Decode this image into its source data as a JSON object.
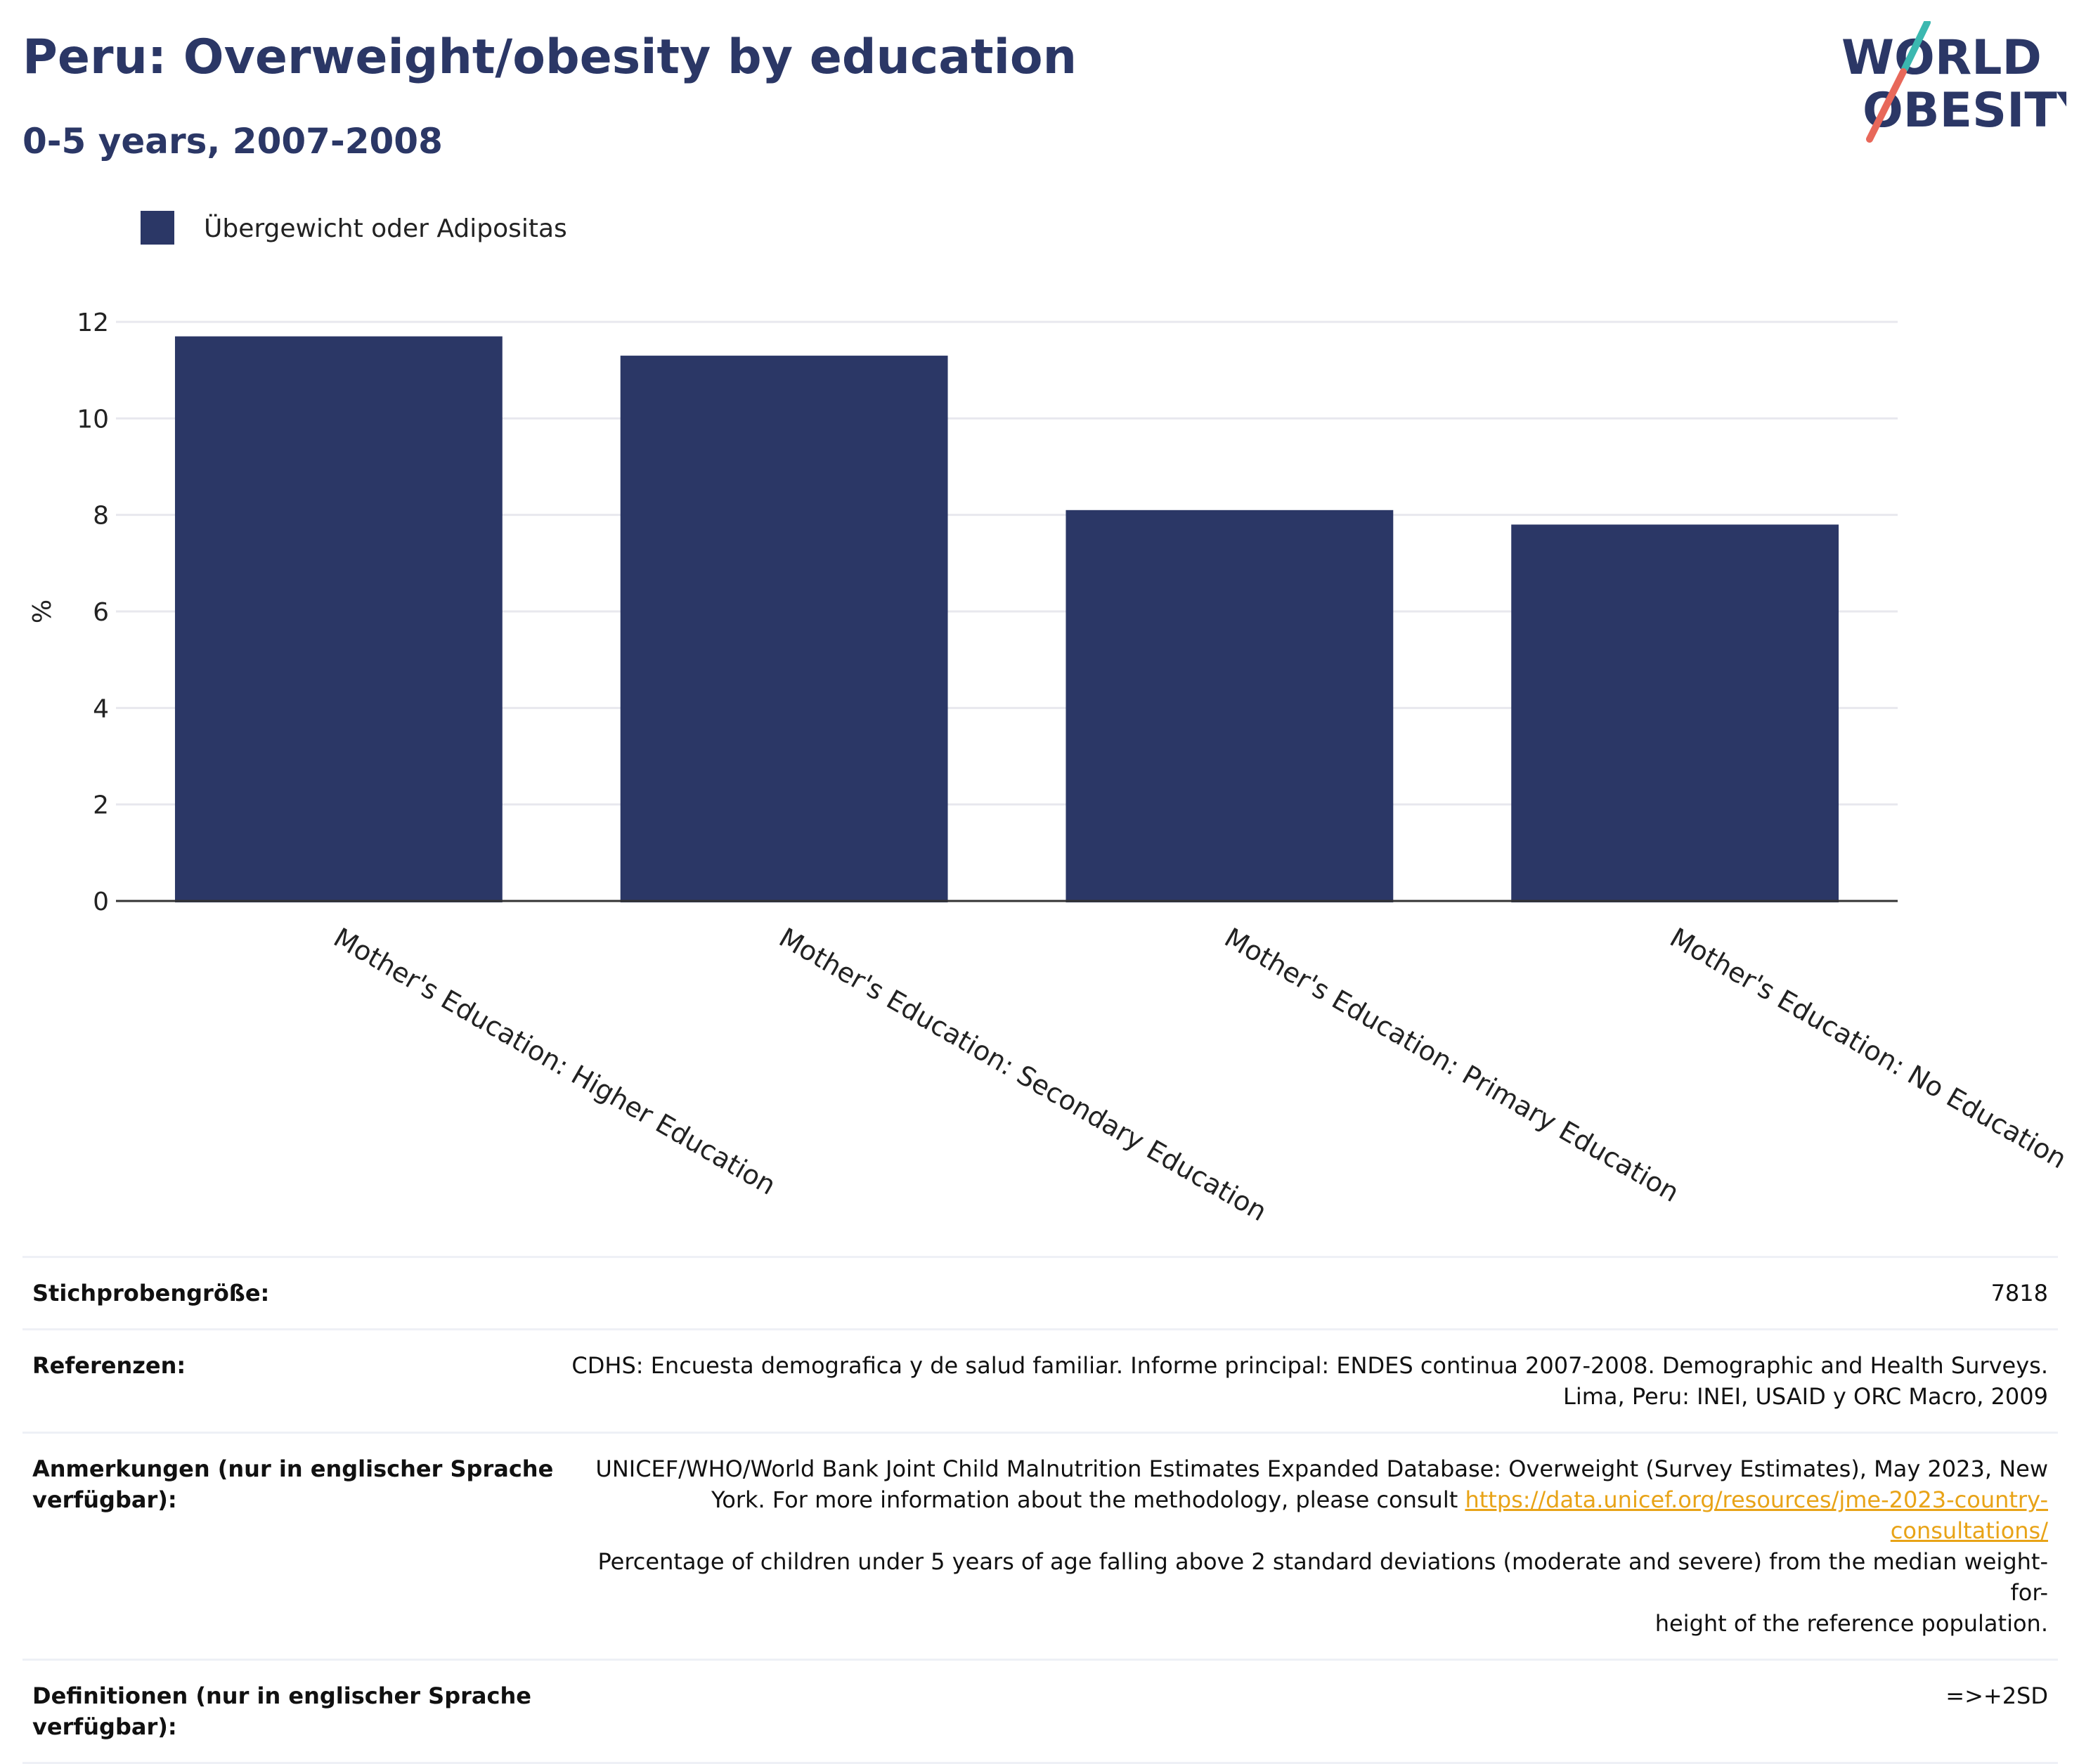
{
  "header": {
    "title": "Peru: Overweight/obesity by education",
    "subtitle": "0-5 years, 2007-2008"
  },
  "logo": {
    "line1": "WORLD",
    "line2": "OBESITY",
    "colors": {
      "text": "#2b3766",
      "slash_teal": "#3bb8b0",
      "slash_coral": "#e8685a"
    }
  },
  "colors": {
    "bar": "#2b3766",
    "grid": "#e8e8ee",
    "axis": "#333333",
    "link": "#e8a317"
  },
  "chart_data": {
    "type": "bar",
    "title": "",
    "xlabel": "",
    "ylabel": "%",
    "ylim": [
      0,
      12
    ],
    "yticks": [
      0,
      2,
      4,
      6,
      8,
      10,
      12
    ],
    "grid": true,
    "legend_position": "top-left",
    "categories": [
      "Mother's Education: Higher Education",
      "Mother's Education: Secondary Education",
      "Mother's Education: Primary Education",
      "Mother's Education: No Education"
    ],
    "series": [
      {
        "name": "Übergewicht oder Adipositas",
        "color": "#2b3766",
        "values": [
          11.7,
          11.3,
          8.1,
          7.8
        ]
      }
    ]
  },
  "meta": {
    "sample_size": {
      "label": "Stichprobengröße:",
      "value": "7818"
    },
    "references": {
      "label": "Referenzen:",
      "value_line1": "CDHS: Encuesta demografica y de salud familiar. Informe principal: ENDES continua 2007-2008. Demographic and Health Surveys.",
      "value_line2": "Lima, Peru: INEI, USAID y ORC Macro, 2009"
    },
    "notes": {
      "label": "Anmerkungen (nur in englischer Sprache verfügbar):",
      "value_line1": "UNICEF/WHO/World Bank Joint Child Malnutrition Estimates Expanded Database: Overweight (Survey Estimates), May 2023, New",
      "value_line2_prefix": "York. For more information about the methodology, please consult ",
      "link_text": "https://data.unicef.org/resources/jme-2023-country-consultations/",
      "value_line3": "Percentage of children under 5 years of age falling above 2 standard deviations (moderate and severe) from the median weight-for-",
      "value_line4": "height of the reference population."
    },
    "definitions": {
      "label": "Definitionen (nur in englischer Sprache verfügbar):",
      "value": "=>+2SD"
    }
  }
}
